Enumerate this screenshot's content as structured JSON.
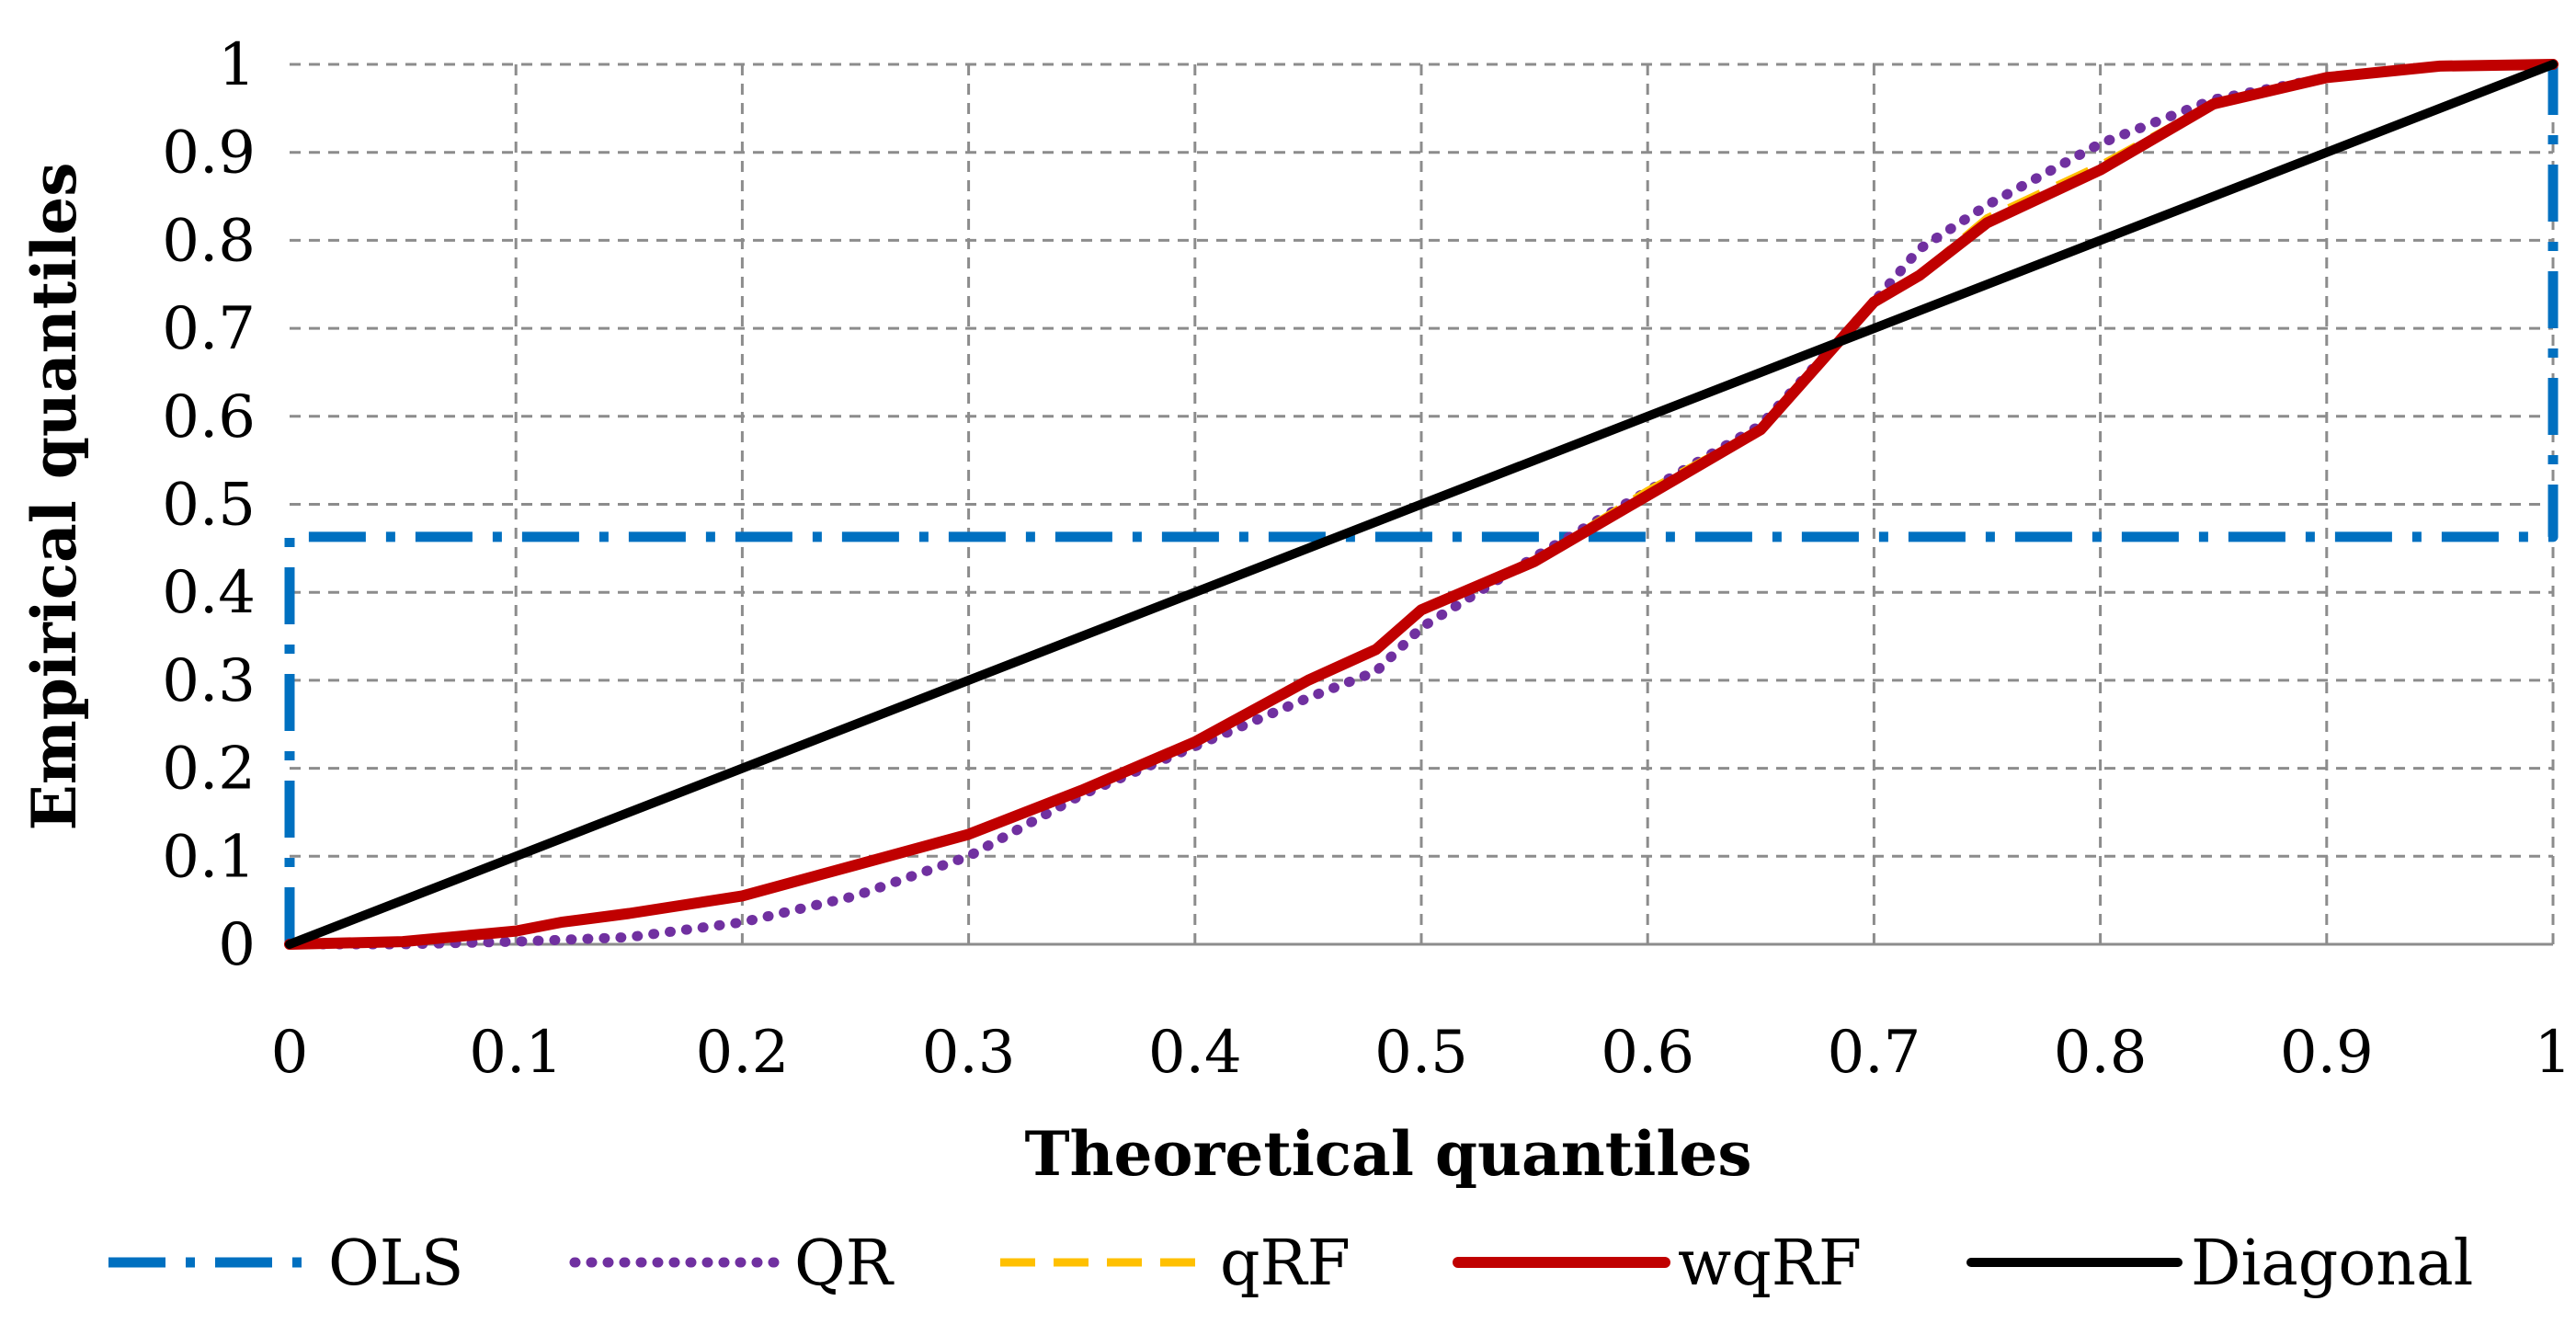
{
  "chart_data": {
    "type": "line",
    "title": "",
    "xlabel": "Theoretical quantiles",
    "ylabel": "Empirical quantiles",
    "xlim": [
      0,
      1
    ],
    "ylim": [
      0,
      1
    ],
    "grid": true,
    "legend_position": "bottom",
    "x_ticks": [
      "0",
      "0.1",
      "0.2",
      "0.3",
      "0.4",
      "0.5",
      "0.6",
      "0.7",
      "0.8",
      "0.9",
      "1"
    ],
    "y_ticks": [
      "0",
      "0.1",
      "0.2",
      "0.3",
      "0.4",
      "0.5",
      "0.6",
      "0.7",
      "0.8",
      "0.9",
      "1"
    ],
    "series": [
      {
        "name": "OLS",
        "style": "dash-dot",
        "color": "#0070c0",
        "x": [
          0,
          0,
          1,
          1
        ],
        "y": [
          0,
          0.463,
          0.463,
          1
        ]
      },
      {
        "name": "QR",
        "style": "dotted",
        "color": "#7030a0",
        "x": [
          0,
          0.05,
          0.1,
          0.15,
          0.2,
          0.25,
          0.3,
          0.35,
          0.4,
          0.45,
          0.48,
          0.5,
          0.55,
          0.6,
          0.65,
          0.7,
          0.72,
          0.75,
          0.8,
          0.85,
          0.9,
          0.95,
          1
        ],
        "y": [
          0,
          0.0,
          0.003,
          0.008,
          0.025,
          0.055,
          0.1,
          0.17,
          0.225,
          0.28,
          0.31,
          0.36,
          0.44,
          0.515,
          0.59,
          0.73,
          0.79,
          0.84,
          0.91,
          0.96,
          0.985,
          0.998,
          1
        ]
      },
      {
        "name": "qRF",
        "style": "dashed",
        "color": "#ffc000",
        "x": [
          0,
          0.05,
          0.1,
          0.12,
          0.15,
          0.2,
          0.25,
          0.3,
          0.35,
          0.4,
          0.45,
          0.48,
          0.5,
          0.55,
          0.6,
          0.65,
          0.7,
          0.72,
          0.75,
          0.8,
          0.85,
          0.9,
          0.95,
          1
        ],
        "y": [
          0,
          0.003,
          0.015,
          0.025,
          0.035,
          0.055,
          0.09,
          0.125,
          0.175,
          0.23,
          0.3,
          0.335,
          0.38,
          0.435,
          0.515,
          0.585,
          0.73,
          0.76,
          0.825,
          0.885,
          0.955,
          0.985,
          0.998,
          1
        ]
      },
      {
        "name": "wqRF",
        "style": "solid",
        "color": "#c00000",
        "x": [
          0,
          0.05,
          0.1,
          0.12,
          0.15,
          0.2,
          0.25,
          0.3,
          0.35,
          0.4,
          0.45,
          0.48,
          0.5,
          0.55,
          0.6,
          0.65,
          0.7,
          0.72,
          0.75,
          0.8,
          0.85,
          0.9,
          0.95,
          1
        ],
        "y": [
          0,
          0.003,
          0.015,
          0.025,
          0.035,
          0.055,
          0.09,
          0.125,
          0.175,
          0.23,
          0.3,
          0.335,
          0.38,
          0.435,
          0.51,
          0.585,
          0.73,
          0.76,
          0.82,
          0.88,
          0.955,
          0.985,
          0.998,
          1
        ]
      },
      {
        "name": "Diagonal",
        "style": "solid",
        "color": "#000000",
        "x": [
          0,
          1
        ],
        "y": [
          0,
          1
        ]
      }
    ]
  }
}
